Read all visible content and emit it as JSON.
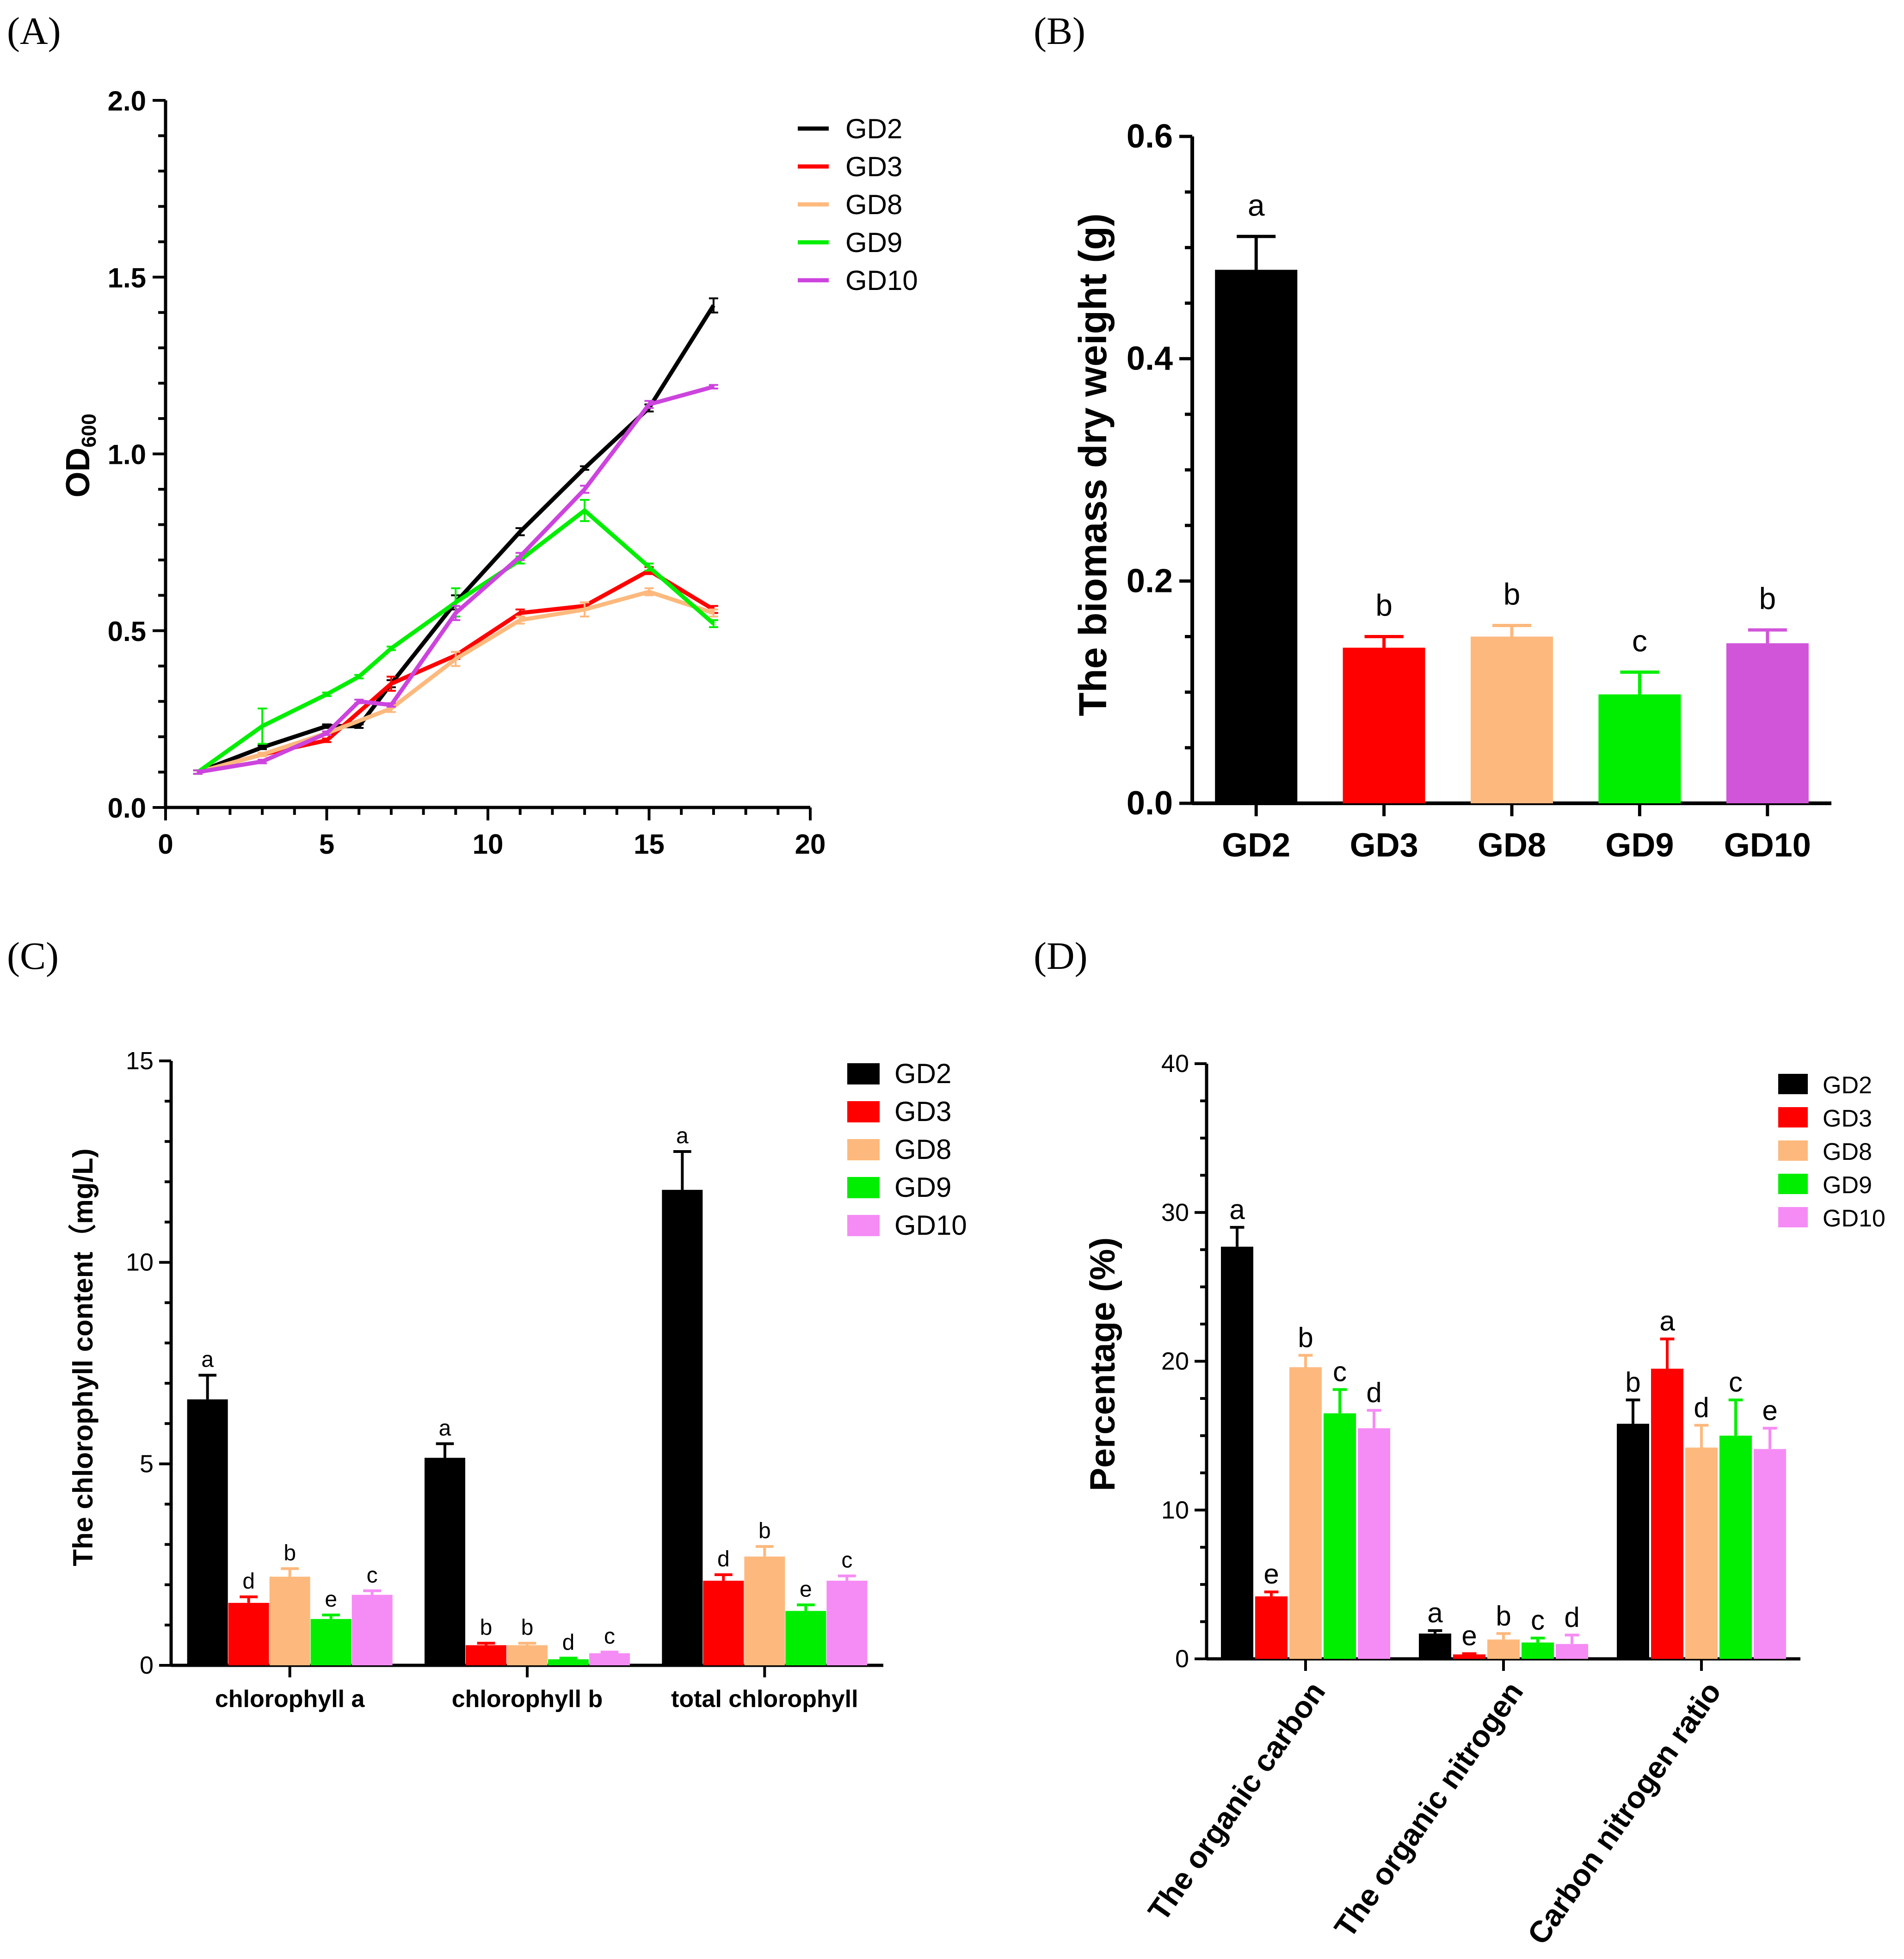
{
  "figure": {
    "panel_labels": [
      "(A)",
      "(B)",
      "(C)",
      "(D)"
    ]
  },
  "chart_data": [
    {
      "panel": "(A)",
      "type": "line",
      "ylabel": "OD",
      "ylabel_sub": "600",
      "xlabel": "",
      "xlim": [
        0,
        20
      ],
      "ylim": [
        0,
        2.0
      ],
      "xticks": [
        "0",
        "5",
        "10",
        "15",
        "20"
      ],
      "yticks": [
        "0.0",
        "0.5",
        "1.0",
        "1.5",
        "2.0"
      ],
      "legend_position": "top-right",
      "series": [
        {
          "name": "GD2",
          "color": "#000000",
          "x": [
            1,
            3,
            5,
            6,
            7,
            9,
            11,
            13,
            15,
            17
          ],
          "y": [
            0.1,
            0.17,
            0.23,
            0.23,
            0.35,
            0.58,
            0.78,
            0.96,
            1.13,
            1.42
          ],
          "err": [
            0.005,
            0.005,
            0.005,
            0.005,
            0.01,
            0.02,
            0.01,
            0.005,
            0.01,
            0.02
          ]
        },
        {
          "name": "GD3",
          "color": "#ff0000",
          "x": [
            1,
            3,
            5,
            7,
            9,
            11,
            13,
            15,
            17
          ],
          "y": [
            0.1,
            0.15,
            0.19,
            0.35,
            0.43,
            0.55,
            0.57,
            0.67,
            0.56
          ],
          "err": [
            0.005,
            0.005,
            0.005,
            0.02,
            0.01,
            0.01,
            0.01,
            0.01,
            0.01
          ]
        },
        {
          "name": "GD8",
          "color": "#fdb97d",
          "x": [
            1,
            3,
            5,
            7,
            9,
            11,
            13,
            15,
            17
          ],
          "y": [
            0.1,
            0.15,
            0.21,
            0.28,
            0.42,
            0.53,
            0.56,
            0.61,
            0.55
          ],
          "err": [
            0.005,
            0.005,
            0.005,
            0.01,
            0.02,
            0.01,
            0.02,
            0.01,
            0.01
          ]
        },
        {
          "name": "GD9",
          "color": "#00ee00",
          "x": [
            1,
            3,
            5,
            6,
            7,
            9,
            11,
            13,
            15,
            17
          ],
          "y": [
            0.1,
            0.23,
            0.32,
            0.37,
            0.45,
            0.58,
            0.7,
            0.84,
            0.68,
            0.52
          ],
          "err": [
            0.005,
            0.05,
            0.005,
            0.005,
            0.005,
            0.04,
            0.01,
            0.03,
            0.01,
            0.01
          ]
        },
        {
          "name": "GD10",
          "color": "#cc44dd",
          "x": [
            1,
            3,
            5,
            6,
            7,
            9,
            11,
            13,
            15,
            17
          ],
          "y": [
            0.1,
            0.13,
            0.21,
            0.3,
            0.29,
            0.55,
            0.71,
            0.9,
            1.14,
            1.19
          ],
          "err": [
            0.005,
            0.005,
            0.005,
            0.005,
            0.005,
            0.02,
            0.01,
            0.01,
            0.01,
            0.005
          ]
        }
      ]
    },
    {
      "panel": "(B)",
      "type": "bar",
      "ylabel": "The biomass dry weight (g)",
      "ylim": [
        0,
        0.6
      ],
      "yticks": [
        "0.0",
        "0.2",
        "0.4",
        "0.6"
      ],
      "categories": [
        "GD2",
        "GD3",
        "GD8",
        "GD9",
        "GD10"
      ],
      "values": [
        0.48,
        0.14,
        0.15,
        0.098,
        0.144
      ],
      "errors": [
        0.03,
        0.01,
        0.01,
        0.02,
        0.012
      ],
      "colors": [
        "#000000",
        "#ff0000",
        "#fdb97d",
        "#00ee00",
        "#d155d9"
      ],
      "significance": [
        "a",
        "b",
        "b",
        "c",
        "b"
      ]
    },
    {
      "panel": "(C)",
      "type": "bar",
      "ylabel": "The chlorophyll content（mg/L)",
      "ylim": [
        0,
        15
      ],
      "yticks": [
        "0",
        "5",
        "10",
        "15"
      ],
      "categories": [
        "chlorophyll a",
        "chlorophyll b",
        "total chlorophyll"
      ],
      "legend_position": "top-right",
      "series": [
        {
          "name": "GD2",
          "color": "#000000",
          "values": [
            6.6,
            5.15,
            11.8
          ],
          "errors": [
            0.6,
            0.35,
            0.95
          ],
          "significance": [
            "a",
            "a",
            "a"
          ]
        },
        {
          "name": "GD3",
          "color": "#ff0000",
          "values": [
            1.55,
            0.5,
            2.1
          ],
          "errors": [
            0.15,
            0.05,
            0.15
          ],
          "significance": [
            "d",
            "b",
            "d"
          ]
        },
        {
          "name": "GD8",
          "color": "#fdb97d",
          "values": [
            2.2,
            0.5,
            2.7
          ],
          "errors": [
            0.2,
            0.05,
            0.25
          ],
          "significance": [
            "b",
            "b",
            "b"
          ]
        },
        {
          "name": "GD9",
          "color": "#00ee00",
          "values": [
            1.15,
            0.15,
            1.35
          ],
          "errors": [
            0.1,
            0.03,
            0.15
          ],
          "significance": [
            "e",
            "d",
            "e"
          ]
        },
        {
          "name": "GD10",
          "color": "#f58cf5",
          "values": [
            1.75,
            0.3,
            2.1
          ],
          "errors": [
            0.1,
            0.03,
            0.12
          ],
          "significance": [
            "c",
            "c",
            "c"
          ]
        }
      ]
    },
    {
      "panel": "(D)",
      "type": "bar",
      "ylabel": "Percentage (%)",
      "ylim": [
        0,
        40
      ],
      "yticks": [
        "0",
        "10",
        "20",
        "30",
        "40"
      ],
      "categories": [
        "The organic carbon",
        "The organic nitrogen",
        "Carbon nitrogen ratio"
      ],
      "legend_position": "top-right",
      "series": [
        {
          "name": "GD2",
          "color": "#000000",
          "values": [
            27.7,
            1.7,
            15.8
          ],
          "errors": [
            1.3,
            0.2,
            1.6
          ],
          "significance": [
            "a",
            "a",
            "b"
          ]
        },
        {
          "name": "GD3",
          "color": "#ff0000",
          "values": [
            4.2,
            0.3,
            19.5
          ],
          "errors": [
            0.3,
            0.05,
            2.0
          ],
          "significance": [
            "e",
            "e",
            "a"
          ]
        },
        {
          "name": "GD8",
          "color": "#fdb97d",
          "values": [
            19.6,
            1.3,
            14.2
          ],
          "errors": [
            0.8,
            0.4,
            1.5
          ],
          "significance": [
            "b",
            "b",
            "d"
          ]
        },
        {
          "name": "GD9",
          "color": "#00ee00",
          "values": [
            16.5,
            1.1,
            15.0
          ],
          "errors": [
            1.6,
            0.3,
            2.4
          ],
          "significance": [
            "c",
            "c",
            "c"
          ]
        },
        {
          "name": "GD10",
          "color": "#f58cf5",
          "values": [
            15.5,
            1.0,
            14.1
          ],
          "errors": [
            1.2,
            0.6,
            1.4
          ],
          "significance": [
            "d",
            "d",
            "e"
          ]
        }
      ]
    }
  ]
}
